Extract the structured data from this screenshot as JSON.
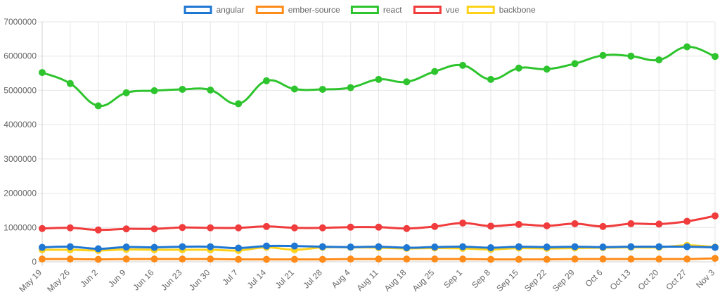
{
  "chart_data": {
    "type": "line",
    "title": "",
    "xlabel": "",
    "ylabel": "",
    "ylim": [
      0,
      7000000
    ],
    "ytick_values": [
      0,
      1000000,
      2000000,
      3000000,
      4000000,
      5000000,
      6000000,
      7000000
    ],
    "ytick_labels": [
      "0",
      "1000000",
      "2000000",
      "3000000",
      "4000000",
      "5000000",
      "6000000",
      "7000000"
    ],
    "grid": true,
    "legend_position": "top-center",
    "categories": [
      "May 19",
      "May 26",
      "Jun 2",
      "Jun 9",
      "Jun 16",
      "Jun 23",
      "Jun 30",
      "Jul 7",
      "Jul 14",
      "Jul 21",
      "Jul 28",
      "Aug 4",
      "Aug 11",
      "Aug 18",
      "Aug 25",
      "Sep 1",
      "Sep 8",
      "Sep 15",
      "Sep 22",
      "Sep 29",
      "Oct 6",
      "Oct 13",
      "Oct 20",
      "Oct 27",
      "Nov 3"
    ],
    "series": [
      {
        "name": "angular",
        "color": "#1f77d4",
        "values": [
          420000,
          440000,
          380000,
          430000,
          420000,
          440000,
          440000,
          400000,
          460000,
          460000,
          440000,
          430000,
          440000,
          410000,
          430000,
          440000,
          410000,
          440000,
          430000,
          440000,
          430000,
          440000,
          440000,
          440000,
          420000
        ]
      },
      {
        "name": "ember-source",
        "color": "#ff8c1a",
        "values": [
          80000,
          80000,
          70000,
          80000,
          80000,
          80000,
          80000,
          70000,
          70000,
          70000,
          70000,
          80000,
          80000,
          80000,
          80000,
          80000,
          70000,
          70000,
          70000,
          80000,
          80000,
          80000,
          80000,
          80000,
          100000
        ]
      },
      {
        "name": "react",
        "color": "#2ec42e",
        "values": [
          5520000,
          5200000,
          4550000,
          4930000,
          4990000,
          5030000,
          5010000,
          4610000,
          5280000,
          5040000,
          5030000,
          5080000,
          5320000,
          5250000,
          5550000,
          5730000,
          5320000,
          5650000,
          5620000,
          5780000,
          6020000,
          6000000,
          5890000,
          6270000,
          5990000
        ]
      },
      {
        "name": "vue",
        "color": "#f03c3c",
        "values": [
          970000,
          990000,
          930000,
          960000,
          960000,
          1000000,
          990000,
          990000,
          1030000,
          990000,
          990000,
          1010000,
          1010000,
          970000,
          1030000,
          1130000,
          1040000,
          1090000,
          1050000,
          1110000,
          1030000,
          1110000,
          1100000,
          1180000,
          1340000
        ]
      },
      {
        "name": "backbone",
        "color": "#ffd21a",
        "values": [
          350000,
          350000,
          330000,
          360000,
          350000,
          350000,
          350000,
          330000,
          420000,
          350000,
          420000,
          420000,
          410000,
          390000,
          400000,
          390000,
          360000,
          400000,
          390000,
          400000,
          410000,
          420000,
          420000,
          480000,
          430000
        ]
      }
    ]
  }
}
